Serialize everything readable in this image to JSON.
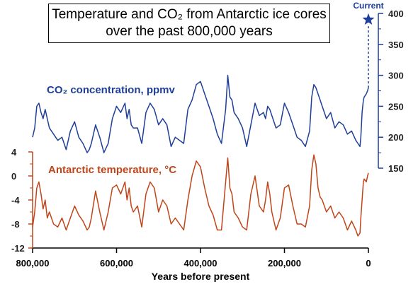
{
  "title_lines": [
    "Temperature and CO₂ from Antarctic ice cores",
    "over the past 800,000 years"
  ],
  "xlabel": "Years before present",
  "co2_label": "CO₂ concentration, ppmv",
  "temp_label": "Antarctic temperature, °C",
  "current_label": "Current",
  "colors": {
    "co2": "#1f3f99",
    "temp": "#c0451a",
    "current": "#1f3f99",
    "axis": "#000000"
  },
  "chart_data": {
    "type": "line",
    "xlim": [
      800000,
      0
    ],
    "x_ticks": [
      800000,
      600000,
      400000,
      200000,
      0
    ],
    "x_tick_labels": [
      "800,000",
      "600,000",
      "400,000",
      "200,000",
      "0"
    ],
    "series": [
      {
        "name": "CO₂ concentration, ppmv",
        "axis": "right",
        "ylim": [
          150,
          400
        ],
        "y_ticks": [
          150,
          200,
          250,
          300,
          350,
          400
        ],
        "x": [
          800000,
          795000,
          790000,
          785000,
          780000,
          775000,
          770000,
          765000,
          760000,
          750000,
          740000,
          730000,
          720000,
          710000,
          700000,
          690000,
          680000,
          670000,
          665000,
          660000,
          650000,
          640000,
          630000,
          620000,
          610000,
          600000,
          590000,
          580000,
          575000,
          570000,
          565000,
          560000,
          550000,
          540000,
          530000,
          520000,
          510000,
          500000,
          490000,
          480000,
          470000,
          460000,
          450000,
          440000,
          430000,
          420000,
          410000,
          400000,
          390000,
          380000,
          370000,
          360000,
          350000,
          340000,
          335000,
          330000,
          325000,
          320000,
          310000,
          300000,
          290000,
          280000,
          270000,
          260000,
          250000,
          245000,
          240000,
          235000,
          230000,
          220000,
          210000,
          200000,
          190000,
          180000,
          170000,
          160000,
          150000,
          140000,
          135000,
          130000,
          125000,
          120000,
          115000,
          110000,
          100000,
          90000,
          80000,
          70000,
          60000,
          50000,
          40000,
          30000,
          25000,
          20000,
          18000,
          15000,
          12000,
          10000,
          5000,
          2000,
          0
        ],
        "y": [
          200,
          215,
          250,
          255,
          240,
          230,
          245,
          230,
          215,
          205,
          195,
          200,
          180,
          210,
          225,
          200,
          190,
          175,
          180,
          190,
          220,
          200,
          175,
          190,
          230,
          250,
          240,
          255,
          230,
          245,
          220,
          215,
          215,
          190,
          240,
          255,
          245,
          220,
          230,
          220,
          185,
          200,
          195,
          190,
          245,
          260,
          285,
          290,
          270,
          250,
          230,
          205,
          190,
          245,
          300,
          265,
          260,
          240,
          230,
          215,
          185,
          220,
          255,
          235,
          240,
          230,
          250,
          245,
          235,
          215,
          220,
          255,
          240,
          220,
          200,
          195,
          185,
          210,
          265,
          285,
          280,
          270,
          260,
          250,
          230,
          240,
          215,
          225,
          220,
          205,
          210,
          195,
          190,
          185,
          200,
          240,
          260,
          265,
          270,
          275,
          280
        ]
      },
      {
        "name": "Antarctic temperature, °C",
        "axis": "left",
        "ylim": [
          -12,
          4
        ],
        "y_ticks": [
          -12,
          -8,
          -4,
          0,
          4
        ],
        "x": [
          800000,
          795000,
          790000,
          785000,
          780000,
          775000,
          770000,
          765000,
          760000,
          750000,
          740000,
          730000,
          720000,
          710000,
          700000,
          690000,
          680000,
          670000,
          665000,
          660000,
          650000,
          640000,
          630000,
          620000,
          610000,
          600000,
          590000,
          580000,
          575000,
          570000,
          565000,
          560000,
          550000,
          540000,
          530000,
          520000,
          510000,
          500000,
          490000,
          480000,
          470000,
          460000,
          450000,
          440000,
          430000,
          420000,
          410000,
          400000,
          390000,
          380000,
          370000,
          360000,
          350000,
          340000,
          335000,
          330000,
          325000,
          320000,
          310000,
          300000,
          290000,
          280000,
          270000,
          260000,
          250000,
          245000,
          240000,
          235000,
          230000,
          220000,
          210000,
          200000,
          190000,
          180000,
          170000,
          160000,
          150000,
          140000,
          135000,
          130000,
          125000,
          120000,
          115000,
          110000,
          100000,
          90000,
          80000,
          70000,
          60000,
          50000,
          40000,
          30000,
          25000,
          20000,
          18000,
          15000,
          12000,
          10000,
          5000,
          2000,
          0
        ],
        "y": [
          -8.5,
          -6,
          -2,
          -1,
          -3,
          -5.5,
          -4,
          -7,
          -6,
          -8,
          -8.5,
          -7,
          -9,
          -7,
          -5,
          -6.5,
          -7.5,
          -9,
          -8.5,
          -7,
          -2.5,
          -6,
          -9,
          -6,
          -2,
          -1.5,
          -3,
          -1,
          -4,
          -2,
          -5,
          -6,
          -5,
          -8.5,
          -3,
          -1,
          -2,
          -6,
          -4,
          -5,
          -8,
          -7,
          -8,
          -9,
          -4,
          0,
          2.5,
          1.5,
          -2,
          -5,
          -6.5,
          -9,
          -9,
          -1,
          3,
          -2,
          -3,
          -6,
          -7,
          -8.5,
          -9,
          -3,
          0,
          -5,
          -6,
          -4,
          -1,
          -3,
          -6,
          -9,
          -7,
          -2,
          -1.5,
          -5,
          -8,
          -8,
          -8.5,
          -5,
          1,
          3.5,
          2,
          -2,
          -3.5,
          -4,
          -6,
          -5,
          -7,
          -6,
          -7,
          -9,
          -7.5,
          -9,
          -10,
          -9.5,
          -7,
          -4,
          -1,
          -0.5,
          -1,
          0,
          0.5
        ]
      }
    ],
    "current_marker": {
      "co2": 390
    }
  }
}
